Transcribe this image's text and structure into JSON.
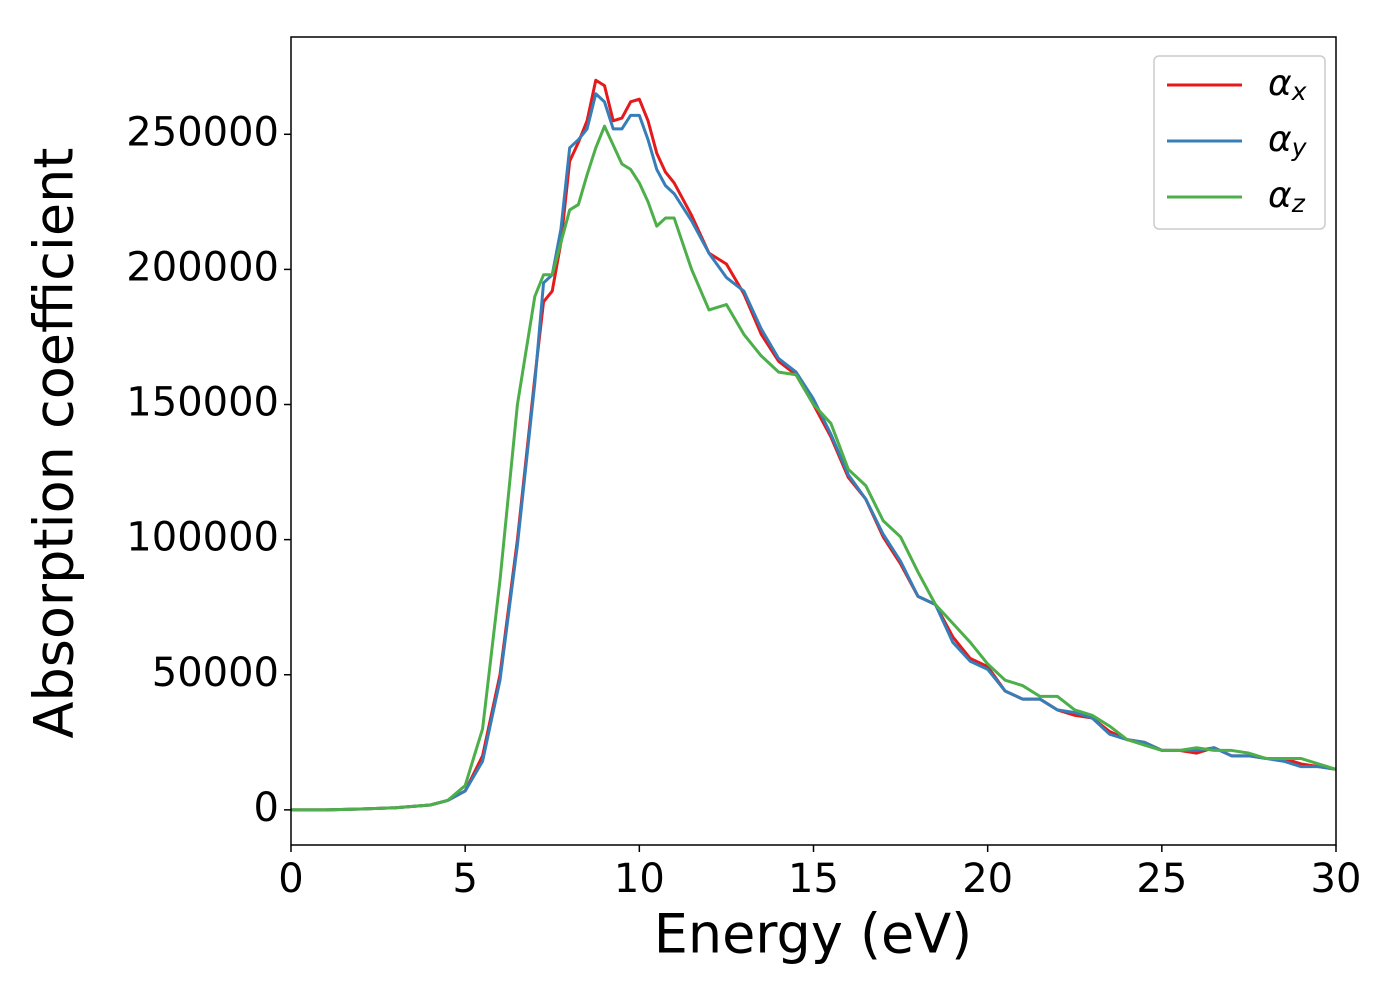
{
  "chart_data": {
    "type": "line",
    "x_label": "Energy (eV)",
    "y_label": "Absorption coefficient",
    "x": [
      0,
      1,
      2,
      3,
      4,
      4.5,
      5,
      5.5,
      6,
      6.5,
      7,
      7.25,
      7.5,
      7.75,
      8,
      8.25,
      8.5,
      8.75,
      9,
      9.25,
      9.5,
      9.75,
      10,
      10.25,
      10.5,
      10.75,
      11,
      11.5,
      12,
      12.5,
      13,
      13.5,
      14,
      14.5,
      15,
      15.5,
      16,
      16.5,
      17,
      17.5,
      18,
      18.5,
      19,
      19.5,
      20,
      20.5,
      21,
      21.5,
      22,
      22.5,
      23,
      23.5,
      24,
      24.5,
      25,
      25.5,
      26,
      26.5,
      27,
      27.5,
      28,
      28.5,
      29,
      29.5,
      30
    ],
    "series": [
      {
        "name": "αx",
        "color": "#e41a1c",
        "values": [
          0,
          0,
          300,
          800,
          1800,
          3500,
          7000,
          20000,
          50000,
          100000,
          160000,
          188000,
          192000,
          210000,
          240000,
          247000,
          255000,
          270000,
          268000,
          255000,
          256000,
          262000,
          263000,
          255000,
          243000,
          236000,
          232000,
          220000,
          206000,
          202000,
          191000,
          176000,
          166000,
          161000,
          150000,
          138000,
          123000,
          115000,
          101000,
          91000,
          79000,
          76000,
          64000,
          56000,
          53000,
          44000,
          41000,
          41000,
          37000,
          35000,
          34000,
          29000,
          26000,
          25000,
          22000,
          22000,
          21000,
          23000,
          20000,
          20000,
          19000,
          19000,
          17000,
          16000,
          15000
        ]
      },
      {
        "name": "αy",
        "color": "#377eb8",
        "values": [
          0,
          0,
          300,
          800,
          1800,
          3500,
          7000,
          18000,
          48000,
          98000,
          158000,
          195000,
          198000,
          215000,
          245000,
          248000,
          252000,
          265000,
          262000,
          252000,
          252000,
          257000,
          257000,
          248000,
          237000,
          231000,
          228000,
          218000,
          206000,
          197000,
          192000,
          178000,
          167000,
          162000,
          152000,
          139000,
          124000,
          115000,
          102000,
          92000,
          79000,
          76000,
          62000,
          55000,
          52000,
          44000,
          41000,
          41000,
          37000,
          36000,
          34000,
          28000,
          26000,
          25000,
          22000,
          22000,
          22000,
          23000,
          20000,
          20000,
          19000,
          18000,
          16000,
          16000,
          15000
        ]
      },
      {
        "name": "αz",
        "color": "#4daf4a",
        "values": [
          0,
          0,
          300,
          800,
          1800,
          3500,
          9000,
          30000,
          85000,
          150000,
          190000,
          198000,
          198000,
          210000,
          222000,
          224000,
          235000,
          245000,
          253000,
          246000,
          239000,
          237000,
          232000,
          225000,
          216000,
          219000,
          219000,
          200000,
          185000,
          187000,
          176000,
          168000,
          162000,
          161000,
          150000,
          143000,
          126000,
          120000,
          107000,
          101000,
          88000,
          76000,
          69000,
          62000,
          54000,
          48000,
          46000,
          42000,
          42000,
          37000,
          35000,
          31000,
          26000,
          24000,
          22000,
          22000,
          23000,
          22000,
          22000,
          21000,
          19000,
          19000,
          19000,
          17000,
          15000
        ]
      }
    ],
    "xlim": [
      0,
      30
    ],
    "xticks": [
      0,
      5,
      10,
      15,
      20,
      25,
      30
    ],
    "ylim": [
      -13000,
      286000
    ],
    "yticks": [
      0,
      50000,
      100000,
      150000,
      200000,
      250000
    ],
    "legend": "upper right",
    "grid": false
  }
}
